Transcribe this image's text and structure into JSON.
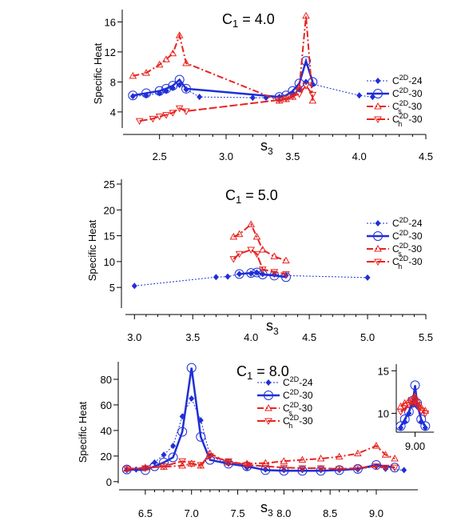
{
  "colors": {
    "blue": "#1f2fd6",
    "red": "#e8231f"
  },
  "chart_data": [
    {
      "type": "line",
      "title": "C1 = 4.0",
      "ylabel": "Specific Heat",
      "xlabel": "s3",
      "xlim": [
        2.25,
        4.5
      ],
      "ylim": [
        1,
        17
      ],
      "xticks": [
        2.5,
        3.0,
        3.5,
        4.0,
        4.5
      ],
      "xtick_labels": [
        "2.5",
        "3.0",
        "3.5",
        "4.0",
        "4.5"
      ],
      "yticks": [
        4,
        8,
        12,
        16
      ],
      "ytick_labels": [
        "4",
        "8",
        "12",
        "16"
      ],
      "legend": [
        "C2D-24",
        "C2D-30",
        "Cs2D-30",
        "Ch2D-30"
      ],
      "series": [
        {
          "name": "C2D-24",
          "x": [
            2.3,
            2.4,
            2.5,
            2.55,
            2.6,
            2.65,
            2.7,
            2.8,
            3.2,
            3.3,
            3.4,
            3.5,
            3.55,
            3.6,
            3.65,
            4.0,
            4.1
          ],
          "y": [
            6.1,
            6.2,
            6.5,
            6.8,
            7.2,
            7.6,
            7.0,
            6.0,
            5.9,
            5.9,
            6.0,
            6.5,
            7.0,
            8.0,
            7.7,
            6.2,
            6.0
          ]
        },
        {
          "name": "C2D-30",
          "x": [
            2.3,
            2.4,
            2.5,
            2.55,
            2.6,
            2.65,
            2.7,
            3.4,
            3.45,
            3.5,
            3.55,
            3.6,
            3.65
          ],
          "y": [
            6.2,
            6.5,
            6.8,
            7.1,
            7.5,
            8.3,
            7.1,
            6.0,
            6.2,
            6.8,
            7.8,
            10.8,
            8.0
          ]
        },
        {
          "name": "Cs2D-30",
          "x": [
            2.3,
            2.4,
            2.5,
            2.55,
            2.6,
            2.65,
            2.7,
            3.4,
            3.45,
            3.5,
            3.55,
            3.6,
            3.65
          ],
          "y": [
            8.8,
            9.2,
            10.3,
            11.0,
            11.8,
            14.2,
            10.5,
            5.5,
            5.7,
            6.0,
            7.3,
            16.8,
            5.5
          ]
        },
        {
          "name": "Ch2D-30",
          "x": [
            2.35,
            2.45,
            2.5,
            2.55,
            2.6,
            2.65,
            2.7,
            3.4,
            3.45,
            3.5,
            3.55,
            3.6,
            3.65
          ],
          "y": [
            2.8,
            3.1,
            3.4,
            3.6,
            3.9,
            4.5,
            4.1,
            5.6,
            5.8,
            6.1,
            6.4,
            7.5,
            6.3
          ]
        }
      ]
    },
    {
      "type": "line",
      "title": "C1 = 5.0",
      "ylabel": "Specific Heat",
      "xlabel": "s3",
      "xlim": [
        2.95,
        5.5
      ],
      "ylim": [
        1,
        25
      ],
      "xticks": [
        3.0,
        3.5,
        4.0,
        4.5,
        5.0,
        5.5
      ],
      "xtick_labels": [
        "3.0",
        "3.5",
        "4.0",
        "4.5",
        "5.0",
        "5.5"
      ],
      "yticks": [
        5,
        10,
        15,
        20,
        25
      ],
      "ytick_labels": [
        "5",
        "10",
        "15",
        "20",
        "25"
      ],
      "legend": [
        "C2D-24",
        "C2D-30",
        "Cs2D-30",
        "Ch2D-30"
      ],
      "series": [
        {
          "name": "C2D-24",
          "x": [
            3.0,
            3.7,
            3.8,
            3.9,
            4.0,
            4.05,
            4.1,
            4.2,
            4.3,
            5.0
          ],
          "y": [
            5.3,
            7.0,
            7.1,
            7.6,
            7.7,
            7.9,
            7.6,
            7.5,
            7.3,
            6.9
          ]
        },
        {
          "name": "C2D-30",
          "x": [
            3.9,
            4.0,
            4.05,
            4.1,
            4.2,
            4.3
          ],
          "y": [
            7.6,
            7.8,
            7.9,
            7.5,
            7.3,
            7.0
          ]
        },
        {
          "name": "Cs2D-30",
          "x": [
            3.85,
            3.9,
            4.0,
            4.05,
            4.1,
            4.2,
            4.3
          ],
          "y": [
            14.8,
            15.3,
            17.2,
            14.8,
            12.3,
            11.0,
            10.2
          ]
        },
        {
          "name": "Ch2D-30",
          "x": [
            3.85,
            3.9,
            4.0,
            4.05,
            4.1,
            4.2,
            4.3
          ],
          "y": [
            10.5,
            11.5,
            12.3,
            11.5,
            8.5,
            8.0,
            7.6
          ]
        }
      ]
    },
    {
      "type": "line",
      "title": "C1 = 8.0",
      "ylabel": "Specific Heat",
      "xlabel": "s3",
      "xlim": [
        6.25,
        9.45
      ],
      "ylim": [
        -2,
        90
      ],
      "xticks": [
        6.5,
        7.0,
        7.5,
        8.0,
        8.5,
        9.0
      ],
      "xtick_labels": [
        "6.5",
        "7.0",
        "7.5",
        "8.0",
        "8.5",
        "9.0"
      ],
      "yticks": [
        0,
        20,
        40,
        60,
        80
      ],
      "ytick_labels": [
        "0",
        "20",
        "40",
        "60",
        "80"
      ],
      "legend": [
        "C2D-24",
        "C2D-30",
        "Cs2D-30",
        "Ch2D-30"
      ],
      "series": [
        {
          "name": "C2D-24",
          "x": [
            6.3,
            6.4,
            6.5,
            6.6,
            6.7,
            6.8,
            6.9,
            7.0,
            7.1,
            7.2,
            7.4,
            7.6,
            7.8,
            8.0,
            8.2,
            8.4,
            8.6,
            8.8,
            9.0,
            9.1,
            9.3
          ],
          "y": [
            9.0,
            9.5,
            11.0,
            15.0,
            21.0,
            28.0,
            51.0,
            65.0,
            48.0,
            20.0,
            14.0,
            11.0,
            9.5,
            9.0,
            9.0,
            9.0,
            9.0,
            9.5,
            12.0,
            10.0,
            9.0
          ]
        },
        {
          "name": "C2D-30",
          "x": [
            6.3,
            6.5,
            6.6,
            6.7,
            6.8,
            6.9,
            7.0,
            7.1,
            7.2,
            7.4,
            7.6,
            7.8,
            8.0,
            8.2,
            8.4,
            8.6,
            8.8,
            9.0,
            9.2
          ],
          "y": [
            9.5,
            9.0,
            12.0,
            15.0,
            19.0,
            39.0,
            89.0,
            35.0,
            17.0,
            14.0,
            12.0,
            9.0,
            8.5,
            8.5,
            8.5,
            9.0,
            10.0,
            13.0,
            11.0
          ]
        },
        {
          "name": "Cs2D-30",
          "x": [
            6.3,
            6.5,
            6.7,
            6.9,
            7.0,
            7.1,
            7.2,
            7.4,
            7.6,
            7.8,
            8.0,
            8.2,
            8.4,
            8.6,
            8.8,
            9.0,
            9.1,
            9.2
          ],
          "y": [
            10.0,
            11.0,
            11.5,
            12.5,
            14.0,
            12.5,
            22.0,
            15.0,
            14.0,
            14.5,
            16.0,
            17.0,
            18.0,
            19.5,
            22.0,
            28.0,
            21.0,
            18.0
          ]
        },
        {
          "name": "Ch2D-30",
          "x": [
            6.3,
            6.5,
            6.7,
            6.9,
            7.0,
            7.1,
            7.2,
            7.4,
            7.6,
            7.8,
            8.0,
            8.2,
            8.4,
            8.6,
            8.8,
            9.0,
            9.1,
            9.2
          ],
          "y": [
            10.0,
            10.5,
            12.0,
            16.0,
            14.0,
            13.0,
            20.0,
            16.0,
            13.0,
            12.0,
            11.0,
            10.5,
            10.5,
            10.0,
            10.5,
            12.0,
            11.0,
            11.0
          ]
        }
      ],
      "inset": {
        "xtick_labels": [
          "9.00"
        ],
        "ytick_labels": [
          "15",
          "10"
        ],
        "yticks": [
          15,
          10
        ],
        "xticks": [
          9.0
        ],
        "xlim": [
          8.96,
          9.04
        ],
        "ylim": [
          7.5,
          15.5
        ],
        "series": [
          {
            "name": "C2D-24",
            "x": [
              8.965,
              8.975,
              8.985,
              8.995,
              9.0,
              9.005,
              9.015,
              9.025
            ],
            "y": [
              8.3,
              9.0,
              10.0,
              11.0,
              11.8,
              10.8,
              9.0,
              8.3
            ]
          },
          {
            "name": "C2D-30",
            "x": [
              8.965,
              8.975,
              8.985,
              8.995,
              9.0,
              9.005,
              9.015,
              9.025
            ],
            "y": [
              8.5,
              9.3,
              10.2,
              11.5,
              13.3,
              11.2,
              9.3,
              8.5
            ]
          },
          {
            "name": "Cs2D-30",
            "x": [
              8.965,
              8.975,
              8.985,
              8.995,
              9.0,
              9.005,
              9.015,
              9.025
            ],
            "y": [
              10.8,
              11.2,
              11.5,
              11.8,
              12.0,
              11.5,
              10.7,
              10.3
            ]
          },
          {
            "name": "Ch2D-30",
            "x": [
              8.965,
              8.975,
              8.985,
              8.995,
              9.0,
              9.005,
              9.015,
              9.025
            ],
            "y": [
              10.2,
              10.6,
              11.0,
              11.2,
              11.4,
              11.0,
              10.3,
              10.0
            ]
          }
        ]
      }
    }
  ]
}
